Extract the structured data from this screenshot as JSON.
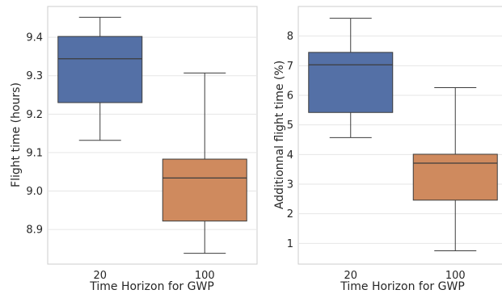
{
  "colors": {
    "series_20": "#5470a6",
    "series_100": "#cf8a5e",
    "grid": "#e6e6e6",
    "spine": "#cccccc",
    "line": "#3d3d3d"
  },
  "chart_data": [
    {
      "type": "box",
      "xlabel": "Time Horizon for GWP",
      "ylabel": "Flight time (hours)",
      "categories": [
        "20",
        "100"
      ],
      "ylim": [
        8.81,
        9.48
      ],
      "yticks": [
        8.9,
        9.0,
        9.1,
        9.2,
        9.3,
        9.4
      ],
      "ytick_labels": [
        "8.9",
        "9.0",
        "9.1",
        "9.2",
        "9.3",
        "9.4"
      ],
      "grid": true,
      "boxes": [
        {
          "category": "20",
          "whisker_low": 9.132,
          "q1": 9.23,
          "median": 9.344,
          "q3": 9.402,
          "whisker_high": 9.452,
          "color": "#5470a6"
        },
        {
          "category": "100",
          "whisker_low": 8.838,
          "q1": 8.922,
          "median": 9.034,
          "q3": 9.083,
          "whisker_high": 9.307,
          "color": "#cf8a5e"
        }
      ]
    },
    {
      "type": "box",
      "xlabel": "Time Horizon for GWP",
      "ylabel": "Additionnal flight time (%)",
      "categories": [
        "20",
        "100"
      ],
      "ylim": [
        0.3,
        9.0
      ],
      "yticks": [
        1,
        2,
        3,
        4,
        5,
        6,
        7,
        8
      ],
      "ytick_labels": [
        "1",
        "2",
        "3",
        "4",
        "5",
        "6",
        "7",
        "8"
      ],
      "grid": true,
      "boxes": [
        {
          "category": "20",
          "whisker_low": 4.57,
          "q1": 5.42,
          "median": 7.03,
          "q3": 7.45,
          "whisker_high": 8.6,
          "color": "#5470a6"
        },
        {
          "category": "100",
          "whisker_low": 0.75,
          "q1": 2.46,
          "median": 3.71,
          "q3": 4.01,
          "whisker_high": 6.26,
          "color": "#cf8a5e"
        }
      ]
    }
  ]
}
